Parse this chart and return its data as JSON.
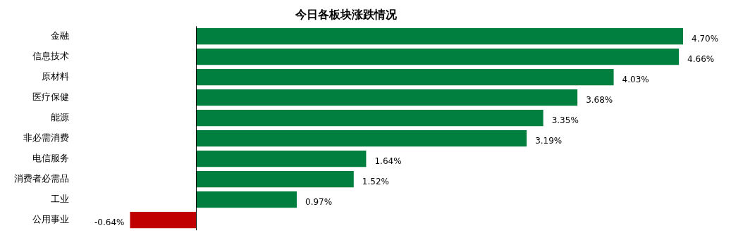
{
  "chart_data": {
    "type": "bar",
    "orientation": "horizontal",
    "title": "今日各板块涨跌情况",
    "categories": [
      "金融",
      "信息技术",
      "原材料",
      "医疗保健",
      "能源",
      "非必需消费",
      "电信服务",
      "消费者必需品",
      "工业",
      "公用事业"
    ],
    "values": [
      4.7,
      4.66,
      4.03,
      3.68,
      3.35,
      3.19,
      1.64,
      1.52,
      0.97,
      -0.64
    ],
    "colors": [
      "#007f3f",
      "#007f3f",
      "#007f3f",
      "#007f3f",
      "#007f3f",
      "#007f3f",
      "#007f3f",
      "#007f3f",
      "#007f3f",
      "#c00000"
    ],
    "value_labels": [
      "4.70%",
      "4.66%",
      "4.03%",
      "3.68%",
      "3.35%",
      "3.19%",
      "1.64%",
      "1.52%",
      "0.97%",
      "-0.64%"
    ],
    "legend": false
  }
}
